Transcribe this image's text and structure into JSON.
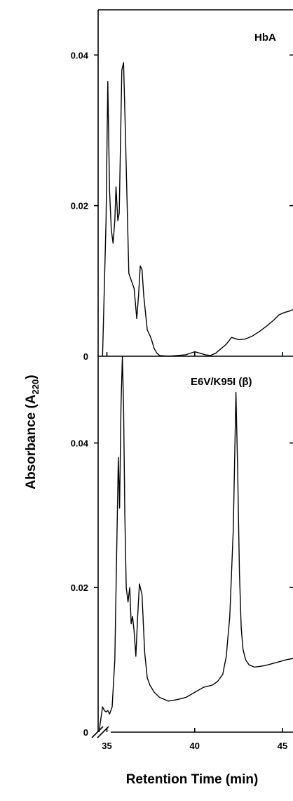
{
  "chart_data": [
    {
      "type": "line",
      "panel_label": "HbA",
      "xlim": [
        34.5,
        45.6
      ],
      "ylim": [
        0,
        0.046
      ],
      "yticks": [
        0,
        0.02,
        0.04
      ],
      "ytick_labels": [
        "0",
        "0.02",
        "0.04"
      ],
      "series": [
        {
          "x": [
            34.75,
            34.95,
            35.05,
            35.15,
            35.25,
            35.35,
            35.45,
            35.52,
            35.62,
            35.7,
            35.85,
            35.95,
            36.05,
            36.25,
            36.55,
            36.7,
            36.8,
            36.9,
            37.0,
            37.1,
            37.3,
            37.5,
            37.7,
            37.85,
            38.0,
            38.5,
            39.0,
            39.5,
            40.0,
            40.3,
            40.6,
            40.9,
            41.2,
            41.5,
            41.8,
            42.1,
            42.5,
            42.9,
            43.3,
            43.7,
            44.1,
            44.5,
            44.8,
            45.1,
            45.4,
            45.6
          ],
          "y": [
            0.0,
            0.018,
            0.0365,
            0.022,
            0.0168,
            0.015,
            0.018,
            0.0225,
            0.018,
            0.019,
            0.038,
            0.039,
            0.03,
            0.011,
            0.009,
            0.005,
            0.008,
            0.012,
            0.0115,
            0.008,
            0.0035,
            0.0025,
            0.001,
            0.0004,
            0.0001,
            0.0,
            0.0001,
            0.0002,
            0.0006,
            0.0004,
            0.0002,
            0.0001,
            0.0004,
            0.001,
            0.0016,
            0.0025,
            0.0022,
            0.0023,
            0.0027,
            0.0033,
            0.004,
            0.0048,
            0.0055,
            0.0058,
            0.006,
            0.0062
          ]
        }
      ]
    },
    {
      "type": "line",
      "panel_label": "E6V/K95I (β)",
      "xlim": [
        34.5,
        45.6
      ],
      "ylim": [
        0,
        0.052
      ],
      "yticks": [
        0,
        0.02,
        0.04
      ],
      "ytick_labels": [
        "0",
        "0.02",
        "0.04"
      ],
      "xticks": [
        35,
        40,
        45
      ],
      "xtick_labels": [
        "35",
        "40",
        "45"
      ],
      "series": [
        {
          "x": [
            34.55,
            34.65,
            34.75,
            34.85,
            34.95,
            35.05,
            35.15,
            35.3,
            35.45,
            35.55,
            35.65,
            35.72,
            35.8,
            35.88,
            35.95,
            36.02,
            36.1,
            36.2,
            36.3,
            36.38,
            36.46,
            36.55,
            36.65,
            36.75,
            36.85,
            37.0,
            37.15,
            37.3,
            37.45,
            37.7,
            38.0,
            38.5,
            39.0,
            39.5,
            40.0,
            40.5,
            41.0,
            41.3,
            41.6,
            41.8,
            42.0,
            42.2,
            42.35,
            42.45,
            42.55,
            42.65,
            42.75,
            42.9,
            43.1,
            43.4,
            43.7,
            44.0,
            44.3,
            44.6,
            44.9,
            45.2,
            45.6
          ],
          "y": [
            0.0,
            0.0018,
            0.0035,
            0.003,
            0.0028,
            0.003,
            0.0025,
            0.0035,
            0.01,
            0.024,
            0.038,
            0.031,
            0.045,
            0.052,
            0.045,
            0.03,
            0.02,
            0.018,
            0.02,
            0.015,
            0.016,
            0.014,
            0.0105,
            0.016,
            0.0205,
            0.019,
            0.011,
            0.0075,
            0.0065,
            0.0055,
            0.0048,
            0.0043,
            0.0045,
            0.0048,
            0.0055,
            0.0062,
            0.0065,
            0.007,
            0.008,
            0.0105,
            0.016,
            0.028,
            0.047,
            0.036,
            0.022,
            0.0145,
            0.0115,
            0.01,
            0.0093,
            0.009,
            0.0091,
            0.0092,
            0.0094,
            0.0096,
            0.0098,
            0.01,
            0.0102
          ]
        }
      ]
    }
  ],
  "axes": {
    "ylabel_main": "Absorbance (A",
    "ylabel_sub": "220",
    "ylabel_end": ")",
    "xlabel": "Retention Time (min)"
  }
}
